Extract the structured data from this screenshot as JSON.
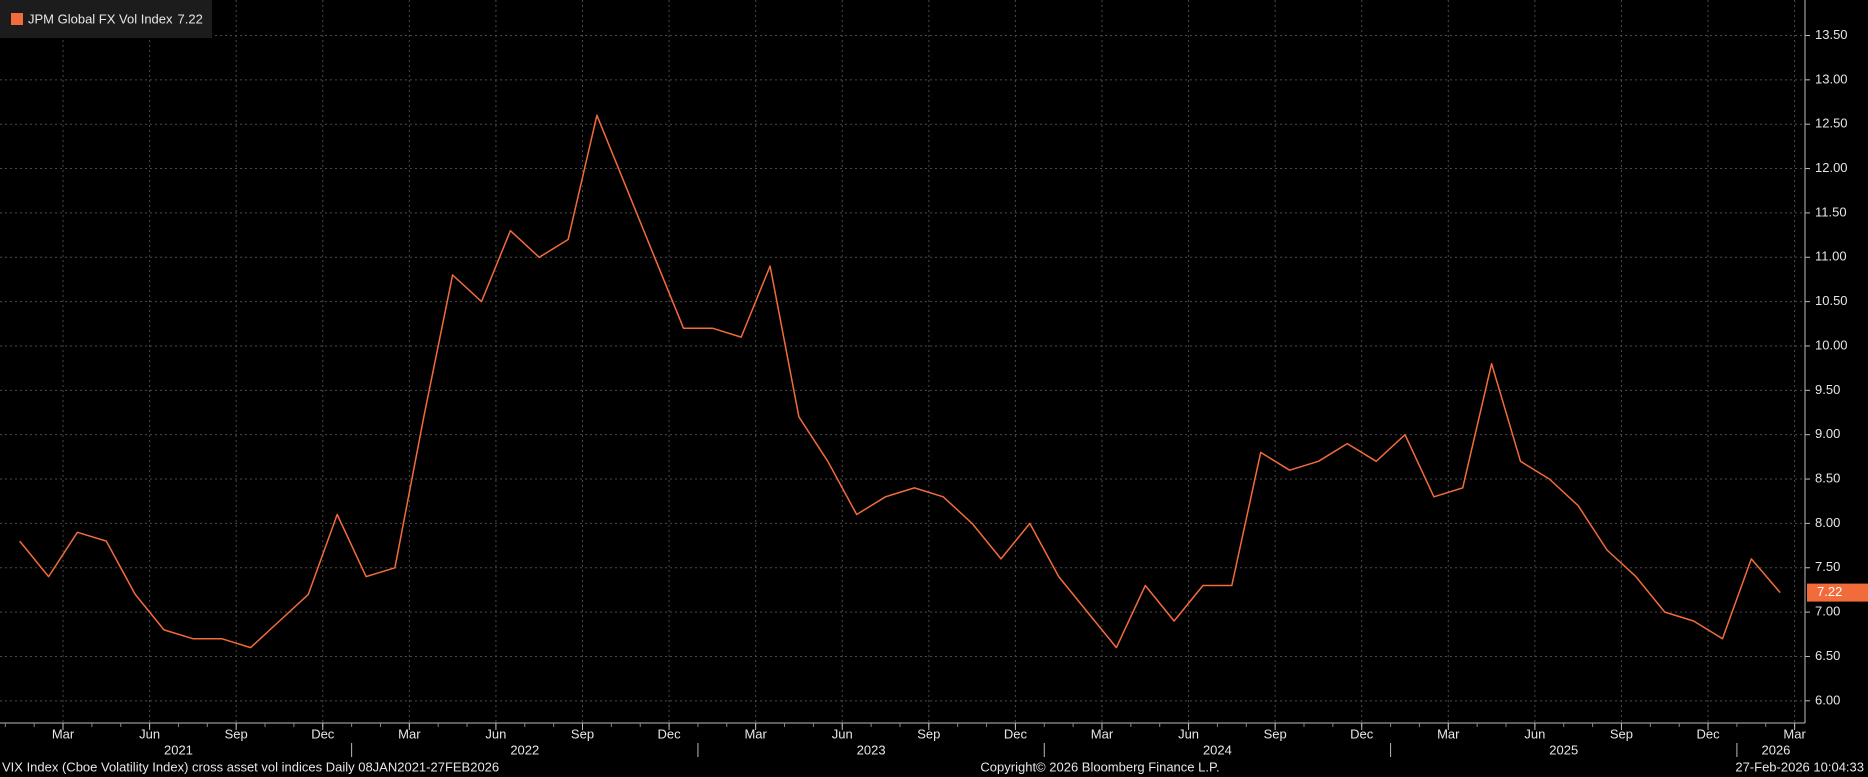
{
  "chart_data": {
    "type": "line",
    "series": [
      {
        "name": "JPM Global FX Vol Index",
        "color": "#f26b3a",
        "values": [
          7.8,
          7.4,
          7.9,
          7.8,
          7.2,
          6.8,
          6.7,
          6.7,
          6.6,
          6.9,
          7.2,
          8.1,
          7.4,
          7.5,
          9.2,
          10.8,
          10.5,
          11.3,
          11.0,
          11.2,
          12.6,
          11.8,
          11.0,
          10.2,
          10.2,
          10.1,
          10.9,
          9.2,
          8.7,
          8.1,
          8.3,
          8.4,
          8.3,
          8.0,
          7.6,
          8.0,
          7.4,
          7.0,
          6.6,
          7.3,
          6.9,
          7.3,
          7.3,
          8.8,
          8.6,
          8.7,
          8.9,
          8.7,
          9.0,
          8.3,
          8.4,
          9.8,
          8.7,
          8.5,
          8.2,
          7.7,
          7.4,
          7.0,
          6.9,
          6.7,
          7.6,
          7.22
        ]
      }
    ],
    "x": [
      "2021-01",
      "2021-02",
      "2021-03",
      "2021-04",
      "2021-05",
      "2021-06",
      "2021-07",
      "2021-08",
      "2021-09",
      "2021-10",
      "2021-11",
      "2021-12",
      "2022-01",
      "2022-02",
      "2022-03",
      "2022-04",
      "2022-05",
      "2022-06",
      "2022-07",
      "2022-08",
      "2022-09",
      "2022-10",
      "2022-11",
      "2022-12",
      "2023-01",
      "2023-02",
      "2023-03",
      "2023-04",
      "2023-05",
      "2023-06",
      "2023-07",
      "2023-08",
      "2023-09",
      "2023-10",
      "2023-11",
      "2023-12",
      "2024-01",
      "2024-02",
      "2024-03",
      "2024-04",
      "2024-05",
      "2024-06",
      "2024-07",
      "2024-08",
      "2024-09",
      "2024-10",
      "2024-11",
      "2024-12",
      "2025-01",
      "2025-02",
      "2025-03",
      "2025-04",
      "2025-05",
      "2025-06",
      "2025-07",
      "2025-08",
      "2025-09",
      "2025-10",
      "2025-11",
      "2025-12",
      "2026-01",
      "2026-02"
    ],
    "ylim": [
      5.75,
      13.9
    ],
    "yticks": [
      {
        "value": 6,
        "label": "6.00"
      },
      {
        "value": 6.5,
        "label": "6.50"
      },
      {
        "value": 7,
        "label": "7.00"
      },
      {
        "value": 7.5,
        "label": "7.50"
      },
      {
        "value": 8,
        "label": "8.00"
      },
      {
        "value": 8.5,
        "label": "8.50"
      },
      {
        "value": 9,
        "label": "9.00"
      },
      {
        "value": 9.5,
        "label": "9.50"
      },
      {
        "value": 10,
        "label": "10.00"
      },
      {
        "value": 10.5,
        "label": "10.50"
      },
      {
        "value": 11,
        "label": "11.00"
      },
      {
        "value": 11.5,
        "label": "11.50"
      },
      {
        "value": 12,
        "label": "12.00"
      },
      {
        "value": 12.5,
        "label": "12.50"
      },
      {
        "value": 13,
        "label": "13.00"
      },
      {
        "value": 13.5,
        "label": "13.50"
      }
    ],
    "xticks": [
      {
        "value": "2021-03",
        "label": "Mar"
      },
      {
        "value": "2021-06",
        "label": "Jun"
      },
      {
        "value": "2021-09",
        "label": "Sep"
      },
      {
        "value": "2021-12",
        "label": "Dec"
      },
      {
        "value": "2022-03",
        "label": "Mar"
      },
      {
        "value": "2022-06",
        "label": "Jun"
      },
      {
        "value": "2022-09",
        "label": "Sep"
      },
      {
        "value": "2022-12",
        "label": "Dec"
      },
      {
        "value": "2023-03",
        "label": "Mar"
      },
      {
        "value": "2023-06",
        "label": "Jun"
      },
      {
        "value": "2023-09",
        "label": "Sep"
      },
      {
        "value": "2023-12",
        "label": "Dec"
      },
      {
        "value": "2024-03",
        "label": "Mar"
      },
      {
        "value": "2024-06",
        "label": "Jun"
      },
      {
        "value": "2024-09",
        "label": "Sep"
      },
      {
        "value": "2024-12",
        "label": "Dec"
      },
      {
        "value": "2025-03",
        "label": "Mar"
      },
      {
        "value": "2025-06",
        "label": "Jun"
      },
      {
        "value": "2025-09",
        "label": "Sep"
      },
      {
        "value": "2025-12",
        "label": "Dec"
      },
      {
        "value": "2026-03",
        "label": "Mar"
      }
    ],
    "x_years": [
      "2021",
      "2022",
      "2023",
      "2024",
      "2025",
      "2026"
    ],
    "grid": true,
    "footer_left": "VIX Index (Cboe Volatility Index) cross asset vol indices Daily 08JAN2021-27FEB2026",
    "footer_center": "Copyright© 2026 Bloomberg Finance L.P.",
    "footer_right": "27-Feb-2026 10:04:33"
  }
}
